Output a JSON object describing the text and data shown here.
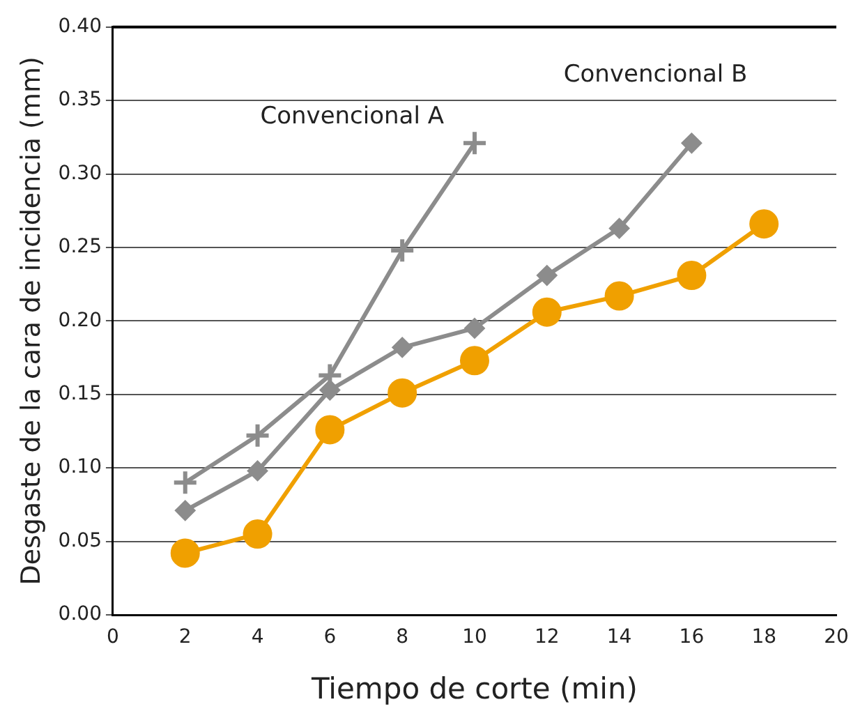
{
  "chart_data": {
    "type": "line",
    "xlabel": "Tiempo de corte (min)",
    "ylabel": "Desgaste de la cara de incidencia (mm)",
    "series": [
      {
        "name": "Convencional A",
        "color": "#8c8c8c",
        "marker": "cross",
        "x": [
          2,
          4,
          6,
          8,
          10
        ],
        "values": [
          0.09,
          0.122,
          0.163,
          0.248,
          0.321
        ]
      },
      {
        "name": "Convencional B",
        "color": "#8c8c8c",
        "marker": "diamond",
        "x": [
          2,
          4,
          6,
          8,
          10,
          12,
          14,
          16
        ],
        "values": [
          0.071,
          0.098,
          0.153,
          0.182,
          0.195,
          0.231,
          0.263,
          0.321
        ]
      },
      {
        "color": "#f0a000",
        "marker": "circle",
        "x": [
          2,
          4,
          6,
          8,
          10,
          12,
          14,
          16,
          18
        ],
        "values": [
          0.042,
          0.055,
          0.126,
          0.151,
          0.173,
          0.206,
          0.217,
          0.231,
          0.266
        ]
      }
    ],
    "xlim": [
      0,
      20
    ],
    "xticks": [
      0,
      2,
      4,
      6,
      8,
      10,
      12,
      14,
      16,
      18,
      20
    ],
    "ylim": [
      0,
      0.4
    ],
    "yticks": [
      {
        "value": 0,
        "label": "0.00"
      },
      {
        "value": 0.05,
        "label": "0.05"
      },
      {
        "value": 0.1,
        "label": "0.10"
      },
      {
        "value": 0.15,
        "label": "0.15"
      },
      {
        "value": 0.2,
        "label": "0.20"
      },
      {
        "value": 0.25,
        "label": "0.25"
      },
      {
        "value": 0.3,
        "label": "0.30"
      },
      {
        "value": 0.35,
        "label": "0.35"
      },
      {
        "value": 0.4,
        "label": "0.40"
      }
    ],
    "grid": "y",
    "legend": false
  }
}
